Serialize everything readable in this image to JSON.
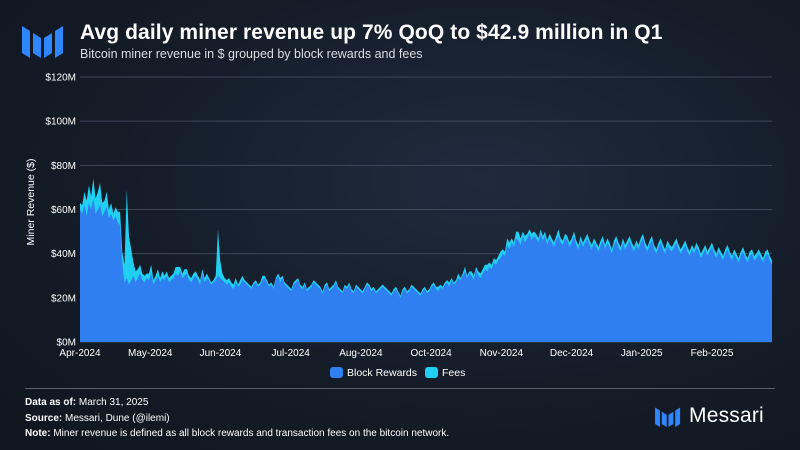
{
  "header": {
    "title": "Avg daily miner revenue up 7% QoQ to $42.9 million in Q1",
    "subtitle": "Bitcoin miner revenue in $ grouped by block rewards and fees"
  },
  "colors": {
    "block_rewards": "#2f7ff0",
    "fees": "#1fd0f2",
    "brand": "#2f86ff"
  },
  "chart_data": {
    "type": "area",
    "stacked": true,
    "ylabel": "Miner Revenue ($)",
    "xlabel": "",
    "ylim": [
      0,
      120000000
    ],
    "y_ticks": [
      0,
      20000000,
      40000000,
      60000000,
      80000000,
      100000000,
      120000000
    ],
    "y_tick_labels": [
      "$0M",
      "$20M",
      "$40M",
      "$60M",
      "$80M",
      "$100M",
      "$120M"
    ],
    "x_tick_labels": [
      "Apr-2024",
      "May-2024",
      "Jun-2024",
      "Jul-2024",
      "Aug-2024",
      "Oct-2024",
      "Nov-2024",
      "Dec-2024",
      "Jan-2025",
      "Feb-2025"
    ],
    "grid": true,
    "legend": "bottom-center",
    "series": [
      {
        "name": "Block Rewards",
        "values_millions": [
          60,
          58,
          62,
          57,
          63,
          60,
          65,
          58,
          60,
          62,
          57,
          59,
          61,
          56,
          58,
          55,
          57,
          54,
          53,
          36,
          27,
          29,
          26,
          28,
          30,
          27,
          29,
          31,
          28,
          27,
          29,
          28,
          31,
          26,
          28,
          30,
          27,
          29,
          28,
          30,
          27,
          28,
          29,
          31,
          30,
          32,
          29,
          30,
          31,
          28,
          27,
          29,
          30,
          28,
          26,
          31,
          27,
          29,
          28,
          26,
          27,
          28,
          30,
          29,
          28,
          27,
          26,
          27,
          25,
          24,
          27,
          25,
          26,
          28,
          27,
          26,
          25,
          24,
          26,
          27,
          25,
          26,
          28,
          29,
          27,
          25,
          26,
          24,
          28,
          30,
          27,
          29,
          26,
          25,
          24,
          23,
          26,
          27,
          28,
          25,
          24,
          26,
          23,
          24,
          25,
          27,
          26,
          25,
          24,
          22,
          25,
          26,
          23,
          24,
          25,
          27,
          24,
          23,
          22,
          25,
          24,
          26,
          23,
          22,
          25,
          24,
          23,
          22,
          24,
          26,
          25,
          23,
          24,
          22,
          23,
          24,
          25,
          24,
          23,
          22,
          21,
          23,
          24,
          22,
          20,
          23,
          24,
          22,
          23,
          25,
          24,
          23,
          22,
          21,
          23,
          24,
          22,
          23,
          25,
          26,
          24,
          23,
          25,
          24,
          26,
          27,
          25,
          28,
          26,
          27,
          29,
          28,
          30,
          32,
          29,
          31,
          30,
          28,
          33,
          30,
          29,
          31,
          33,
          32,
          34,
          33,
          36,
          35,
          37,
          38,
          40,
          39,
          44,
          42,
          45,
          43,
          47,
          46,
          44,
          48,
          45,
          47,
          49,
          46,
          48,
          47,
          45,
          49,
          46,
          48,
          44,
          47,
          45,
          43,
          46,
          48,
          45,
          44,
          47,
          46,
          43,
          45,
          48,
          44,
          42,
          46,
          43,
          45,
          47,
          44,
          42,
          45,
          43,
          41,
          44,
          46,
          42,
          45,
          43,
          40,
          44,
          46,
          43,
          41,
          45,
          42,
          44,
          46,
          43,
          41,
          44,
          42,
          45,
          47,
          43,
          41,
          44,
          46,
          42,
          40,
          43,
          45,
          42,
          40,
          44,
          42,
          41,
          43,
          45,
          42,
          40,
          42,
          44,
          41,
          39,
          42,
          40,
          43,
          41,
          38,
          40,
          42,
          39,
          41,
          43,
          40,
          38,
          41,
          39,
          37,
          40,
          42,
          39,
          37,
          40,
          38,
          36,
          39,
          41,
          38,
          36,
          39,
          40,
          37,
          38,
          40,
          38,
          36,
          39,
          40,
          37,
          35
        ]
      },
      {
        "name": "Fees",
        "values_millions": [
          3,
          4,
          6,
          7,
          8,
          6,
          9,
          7,
          8,
          10,
          6,
          5,
          7,
          4,
          5,
          3,
          4,
          5,
          6,
          5,
          8,
          40,
          22,
          14,
          6,
          5,
          4,
          4,
          3,
          3,
          2,
          3,
          4,
          2,
          2,
          3,
          2,
          3,
          2,
          2,
          2,
          2,
          2,
          3,
          4,
          2,
          2,
          3,
          2,
          2,
          2,
          2,
          2,
          2,
          2,
          2,
          2,
          2,
          1,
          1,
          1,
          2,
          21,
          8,
          3,
          2,
          2,
          2,
          2,
          2,
          2,
          1,
          2,
          2,
          1,
          1,
          1,
          1,
          1,
          1,
          1,
          1,
          2,
          1,
          1,
          1,
          1,
          1,
          1,
          1,
          2,
          1,
          1,
          1,
          1,
          1,
          1,
          1,
          1,
          1,
          1,
          1,
          1,
          1,
          1,
          1,
          1,
          1,
          1,
          1,
          1,
          1,
          1,
          1,
          1,
          1,
          1,
          1,
          1,
          1,
          1,
          1,
          1,
          1,
          1,
          1,
          1,
          1,
          1,
          1,
          1,
          1,
          1,
          1,
          1,
          1,
          1,
          1,
          1,
          1,
          1,
          1,
          1,
          1,
          1,
          1,
          1,
          1,
          1,
          1,
          1,
          1,
          1,
          1,
          1,
          1,
          1,
          1,
          1,
          1,
          1,
          2,
          1,
          1,
          1,
          1,
          2,
          1,
          1,
          1,
          2,
          1,
          1,
          2,
          1,
          1,
          2,
          2,
          1,
          2,
          2,
          2,
          2,
          3,
          2,
          2,
          2,
          2,
          2,
          3,
          2,
          2,
          3,
          3,
          2,
          2,
          3,
          4,
          3,
          2,
          3,
          2,
          2,
          3,
          2,
          2,
          2,
          2,
          2,
          2,
          2,
          2,
          2,
          2,
          2,
          3,
          2,
          2,
          2,
          2,
          2,
          2,
          2,
          2,
          2,
          2,
          2,
          2,
          2,
          2,
          2,
          2,
          2,
          2,
          2,
          2,
          2,
          2,
          2,
          2,
          2,
          2,
          2,
          2,
          2,
          2,
          2,
          2,
          2,
          2,
          2,
          2,
          2,
          2,
          2,
          2,
          2,
          2,
          2,
          2,
          2,
          2,
          2,
          2,
          2,
          2,
          2,
          2,
          2,
          2,
          2,
          2,
          2,
          2,
          2,
          2,
          2,
          2,
          2,
          2,
          2,
          2,
          2,
          2,
          2,
          2,
          2,
          2,
          2,
          2,
          2,
          2,
          2,
          2,
          2,
          2,
          2,
          2,
          2,
          2,
          2,
          2,
          2,
          2,
          2,
          2,
          2,
          2,
          2,
          2,
          2,
          2
        ]
      }
    ]
  },
  "footer": {
    "data_as_of_label": "Data as of:",
    "data_as_of_value": "March 31, 2025",
    "source_label": "Source:",
    "source_value": "Messari, Dune (@ilemi)",
    "note_label": "Note:",
    "note_value": "Miner revenue is defined as all block rewards and transaction fees on the bitcoin network."
  },
  "brand": {
    "name": "Messari",
    "logo_icon": "messari-logo-icon"
  }
}
